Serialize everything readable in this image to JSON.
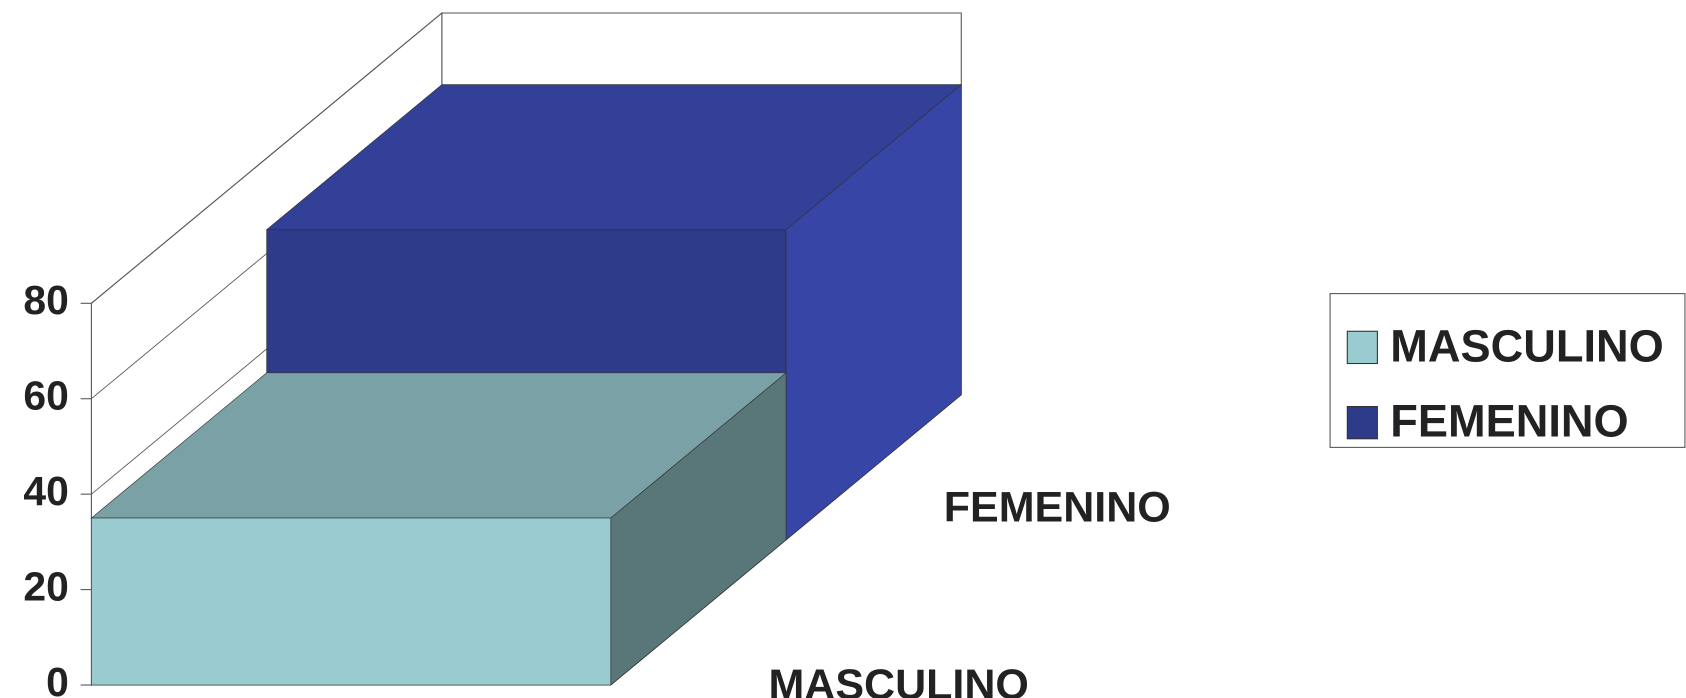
{
  "chart_data": {
    "type": "bar3d",
    "categories": [
      null
    ],
    "series": [
      {
        "name": "MASCULINO",
        "color": "#99cbd0",
        "values": [
          35
        ]
      },
      {
        "name": "FEMENINO",
        "color": "#2e3a8a",
        "values": [
          65
        ]
      }
    ],
    "ylim": [
      0,
      80
    ],
    "yticks": [
      0,
      20,
      40,
      60,
      80
    ],
    "grid": true,
    "legend": "right"
  }
}
